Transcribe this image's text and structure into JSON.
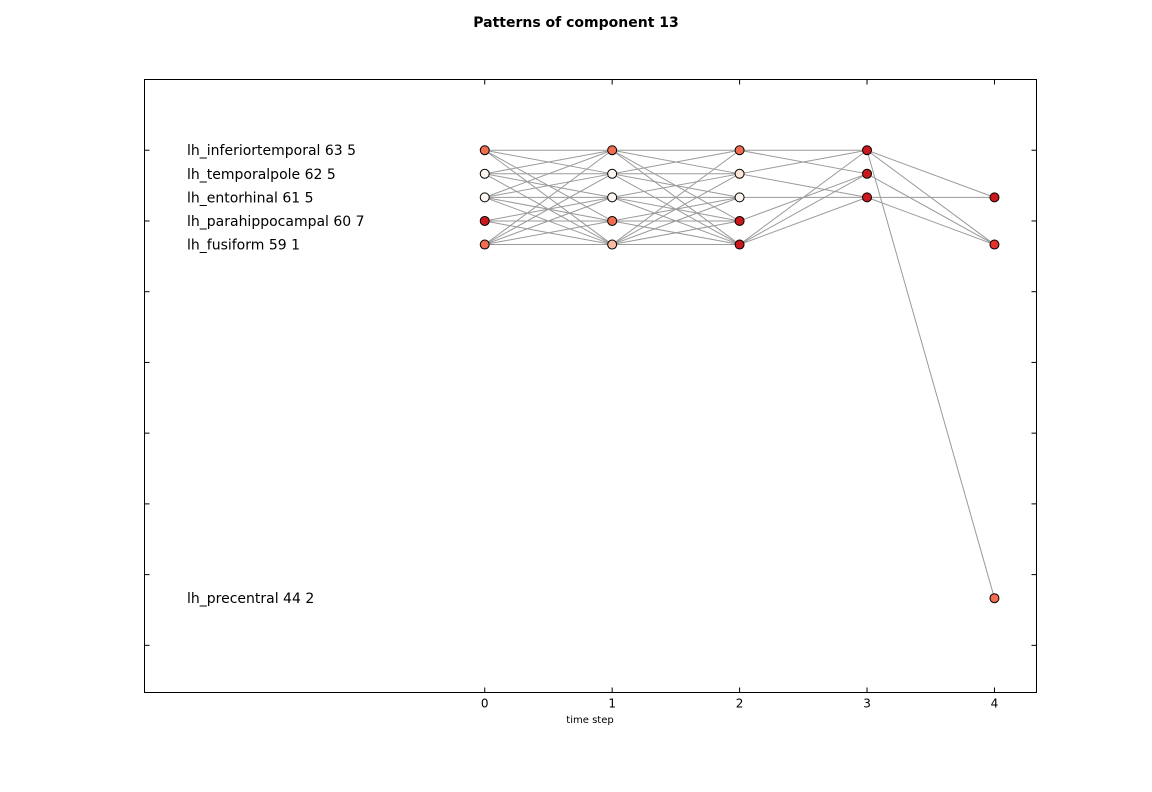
{
  "chart_data": {
    "type": "scatter",
    "title": "Patterns of component 13",
    "xlabel": "time step",
    "ylabel": "",
    "x_ticks": [
      "0",
      "1",
      "2",
      "3",
      "4"
    ],
    "xlim": [
      -2.67,
      4.33
    ],
    "ylim": [
      40,
      66
    ],
    "y_tick_values": [
      42,
      45,
      48,
      51,
      54,
      57,
      60,
      63
    ],
    "grid": false,
    "regions": [
      {
        "label": "lh_inferiortemporal 63 5",
        "y": 63
      },
      {
        "label": "lh_temporalpole 62 5",
        "y": 62
      },
      {
        "label": "lh_entorhinal 61 5",
        "y": 61
      },
      {
        "label": "lh_parahippocampal 60 7",
        "y": 60
      },
      {
        "label": "lh_fusiform 59 1",
        "y": 59
      },
      {
        "label": "lh_precentral 44 2",
        "y": 44
      }
    ],
    "nodes": [
      {
        "t": 0,
        "y": 63,
        "color": "#f26c4f"
      },
      {
        "t": 0,
        "y": 62,
        "color": "#fff5f0"
      },
      {
        "t": 0,
        "y": 61,
        "color": "#fff5f0"
      },
      {
        "t": 0,
        "y": 60,
        "color": "#cb181d"
      },
      {
        "t": 0,
        "y": 59,
        "color": "#f26c4f"
      },
      {
        "t": 1,
        "y": 63,
        "color": "#f26c4f"
      },
      {
        "t": 1,
        "y": 62,
        "color": "#fff5f0"
      },
      {
        "t": 1,
        "y": 61,
        "color": "#fff5f0"
      },
      {
        "t": 1,
        "y": 60,
        "color": "#f26c4f"
      },
      {
        "t": 1,
        "y": 59,
        "color": "#fcbba1"
      },
      {
        "t": 2,
        "y": 63,
        "color": "#f26c4f"
      },
      {
        "t": 2,
        "y": 62,
        "color": "#fee5d9"
      },
      {
        "t": 2,
        "y": 61,
        "color": "#fff5f0"
      },
      {
        "t": 2,
        "y": 60,
        "color": "#cb181d"
      },
      {
        "t": 2,
        "y": 59,
        "color": "#cb181d"
      },
      {
        "t": 3,
        "y": 63,
        "color": "#cb181d"
      },
      {
        "t": 3,
        "y": 62,
        "color": "#cb181d"
      },
      {
        "t": 3,
        "y": 61,
        "color": "#cb181d"
      },
      {
        "t": 4,
        "y": 61,
        "color": "#cb181d"
      },
      {
        "t": 4,
        "y": 59,
        "color": "#e3342a"
      },
      {
        "t": 4,
        "y": 44,
        "color": "#f26c4f"
      }
    ],
    "edges": [
      [
        0,
        63,
        1,
        63
      ],
      [
        0,
        63,
        1,
        62
      ],
      [
        0,
        63,
        1,
        60
      ],
      [
        0,
        63,
        1,
        59
      ],
      [
        0,
        62,
        1,
        63
      ],
      [
        0,
        62,
        1,
        62
      ],
      [
        0,
        62,
        1,
        61
      ],
      [
        0,
        62,
        1,
        59
      ],
      [
        0,
        61,
        1,
        63
      ],
      [
        0,
        61,
        1,
        62
      ],
      [
        0,
        61,
        1,
        61
      ],
      [
        0,
        61,
        1,
        60
      ],
      [
        0,
        61,
        1,
        59
      ],
      [
        0,
        60,
        1,
        61
      ],
      [
        0,
        60,
        1,
        60
      ],
      [
        0,
        60,
        1,
        59
      ],
      [
        0,
        59,
        1,
        63
      ],
      [
        0,
        59,
        1,
        62
      ],
      [
        0,
        59,
        1,
        61
      ],
      [
        0,
        59,
        1,
        60
      ],
      [
        0,
        59,
        1,
        59
      ],
      [
        1,
        63,
        2,
        63
      ],
      [
        1,
        63,
        2,
        62
      ],
      [
        1,
        63,
        2,
        60
      ],
      [
        1,
        63,
        2,
        59
      ],
      [
        1,
        62,
        2,
        63
      ],
      [
        1,
        62,
        2,
        62
      ],
      [
        1,
        62,
        2,
        61
      ],
      [
        1,
        62,
        2,
        59
      ],
      [
        1,
        61,
        2,
        62
      ],
      [
        1,
        61,
        2,
        61
      ],
      [
        1,
        61,
        2,
        60
      ],
      [
        1,
        61,
        2,
        59
      ],
      [
        1,
        60,
        2,
        61
      ],
      [
        1,
        60,
        2,
        60
      ],
      [
        1,
        60,
        2,
        59
      ],
      [
        1,
        59,
        2,
        63
      ],
      [
        1,
        59,
        2,
        62
      ],
      [
        1,
        59,
        2,
        61
      ],
      [
        1,
        59,
        2,
        60
      ],
      [
        1,
        59,
        2,
        59
      ],
      [
        2,
        63,
        3,
        63
      ],
      [
        2,
        63,
        3,
        62
      ],
      [
        2,
        62,
        3,
        63
      ],
      [
        2,
        62,
        3,
        61
      ],
      [
        2,
        61,
        3,
        61
      ],
      [
        2,
        60,
        3,
        62
      ],
      [
        2,
        59,
        3,
        63
      ],
      [
        2,
        59,
        3,
        62
      ],
      [
        2,
        59,
        3,
        61
      ],
      [
        3,
        63,
        4,
        61
      ],
      [
        3,
        63,
        4,
        59
      ],
      [
        3,
        63,
        4,
        44
      ],
      [
        3,
        62,
        4,
        59
      ],
      [
        3,
        61,
        4,
        61
      ],
      [
        3,
        61,
        4,
        59
      ]
    ]
  }
}
